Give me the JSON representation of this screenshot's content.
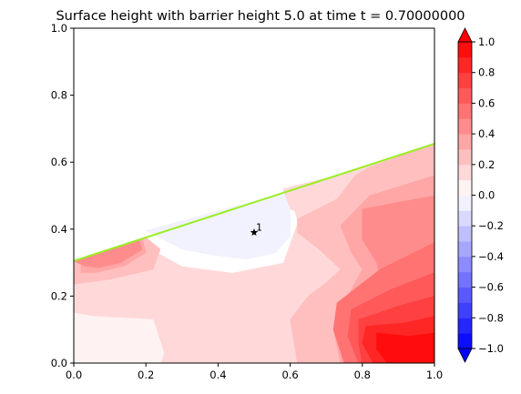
{
  "chart_data": {
    "type": "heatmap",
    "title": "Surface height with barrier height 5.0 at time t =     0.70000000",
    "xlabel": "",
    "ylabel": "",
    "xlim": [
      0.0,
      1.0
    ],
    "ylim": [
      0.0,
      1.0
    ],
    "x_ticks": [
      0.0,
      0.2,
      0.4,
      0.6,
      0.8,
      1.0
    ],
    "x_tick_labels": [
      "0.0",
      "0.2",
      "0.4",
      "0.6",
      "0.8",
      "1.0"
    ],
    "y_ticks": [
      0.0,
      0.2,
      0.4,
      0.6,
      0.8,
      1.0
    ],
    "y_tick_labels": [
      "0.0",
      "0.2",
      "0.4",
      "0.6",
      "0.8",
      "1.0"
    ],
    "grid": false,
    "colormap": "bwr",
    "colorbar": {
      "min": -1.0,
      "max": 1.0,
      "levels": [
        -1.0,
        -0.9,
        -0.8,
        -0.7,
        -0.6,
        -0.5,
        -0.4,
        -0.3,
        -0.2,
        -0.1,
        0.0,
        0.1,
        0.2,
        0.3,
        0.4,
        0.5,
        0.6,
        0.7,
        0.8,
        0.9,
        1.0
      ],
      "extend": "both",
      "ticks": [
        -1.0,
        -0.8,
        -0.6,
        -0.4,
        -0.2,
        0.0,
        0.2,
        0.4,
        0.6,
        0.8,
        1.0
      ],
      "tick_labels": [
        "−1.0",
        "−0.8",
        "−0.6",
        "−0.4",
        "−0.2",
        "0.0",
        "0.2",
        "0.4",
        "0.6",
        "0.8",
        "1.0"
      ]
    },
    "barrier_line": {
      "x": [
        0.0,
        1.0
      ],
      "y": [
        0.305,
        0.655
      ],
      "color": "#99ee22"
    },
    "marker": {
      "x": 0.5,
      "y": 0.39,
      "symbol": "star",
      "label": "1"
    },
    "regions": [
      {
        "level": 0.15,
        "points": [
          [
            0,
            0
          ],
          [
            1,
            0
          ],
          [
            1,
            0.655
          ],
          [
            0,
            0.305
          ]
        ]
      },
      {
        "level": 0.05,
        "points": [
          [
            0,
            0
          ],
          [
            0.24,
            0
          ],
          [
            0.25,
            0.03
          ],
          [
            0.22,
            0.13
          ],
          [
            0.05,
            0.14
          ],
          [
            0,
            0.15
          ]
        ]
      },
      {
        "level": 0.05,
        "points": [
          [
            0.6,
            0.53
          ],
          [
            0.72,
            0.55
          ],
          [
            0.7,
            0.47
          ],
          [
            0.64,
            0.44
          ],
          [
            0.6,
            0.46
          ]
        ]
      },
      {
        "level": 0.0,
        "points": [
          [
            0.15,
            0.38
          ],
          [
            0.56,
            0.52
          ],
          [
            0.6,
            0.5
          ],
          [
            0.62,
            0.42
          ],
          [
            0.58,
            0.3
          ],
          [
            0.44,
            0.27
          ],
          [
            0.3,
            0.29
          ]
        ]
      },
      {
        "level": -0.05,
        "points": [
          [
            0.2,
            0.396
          ],
          [
            0.59,
            0.51
          ],
          [
            0.6,
            0.44
          ],
          [
            0.6,
            0.38
          ],
          [
            0.56,
            0.33
          ],
          [
            0.48,
            0.31
          ],
          [
            0.4,
            0.32
          ],
          [
            0.3,
            0.34
          ]
        ]
      },
      {
        "level": 0.15,
        "points": [
          [
            0.58,
            0.52
          ],
          [
            0.73,
            0.56
          ],
          [
            0.74,
            0.5
          ],
          [
            0.7,
            0.45
          ],
          [
            0.64,
            0.44
          ],
          [
            0.6,
            0.46
          ]
        ]
      },
      {
        "level": 0.25,
        "points": [
          [
            0.62,
            0.43
          ],
          [
            0.73,
            0.49
          ],
          [
            0.78,
            0.56
          ],
          [
            0.82,
            0.585
          ],
          [
            1,
            0.655
          ],
          [
            1,
            0
          ],
          [
            0.62,
            0
          ],
          [
            0.6,
            0.13
          ],
          [
            0.65,
            0.2
          ],
          [
            0.7,
            0.24
          ],
          [
            0.74,
            0.28
          ],
          [
            0.68,
            0.34
          ],
          [
            0.62,
            0.39
          ]
        ]
      },
      {
        "level": 0.25,
        "points": [
          [
            0.0,
            0.305
          ],
          [
            0.2,
            0.375
          ],
          [
            0.24,
            0.34
          ],
          [
            0.22,
            0.28
          ],
          [
            0.1,
            0.25
          ],
          [
            0.0,
            0.235
          ]
        ]
      },
      {
        "level": 0.35,
        "points": [
          [
            0.74,
            0.41
          ],
          [
            0.82,
            0.5
          ],
          [
            1,
            0.56
          ],
          [
            1,
            0
          ],
          [
            0.74,
            0
          ],
          [
            0.72,
            0.1
          ],
          [
            0.76,
            0.2
          ],
          [
            0.8,
            0.28
          ],
          [
            0.77,
            0.33
          ]
        ]
      },
      {
        "level": 0.35,
        "points": [
          [
            0.02,
            0.312
          ],
          [
            0.19,
            0.372
          ],
          [
            0.2,
            0.33
          ],
          [
            0.14,
            0.29
          ],
          [
            0.06,
            0.27
          ],
          [
            0.02,
            0.27
          ]
        ]
      },
      {
        "level": 0.45,
        "points": [
          [
            0.0,
            0.305
          ],
          [
            0.05,
            0.322
          ],
          [
            0.18,
            0.368
          ],
          [
            0.19,
            0.34
          ],
          [
            0.13,
            0.3
          ],
          [
            0.07,
            0.285
          ],
          [
            0.03,
            0.29
          ]
        ]
      },
      {
        "level": 0.45,
        "points": [
          [
            0.8,
            0.46
          ],
          [
            0.9,
            0.48
          ],
          [
            1,
            0.5
          ],
          [
            1,
            0.06
          ],
          [
            0.93,
            0.1
          ],
          [
            0.86,
            0.2
          ],
          [
            0.84,
            0.3
          ],
          [
            0.8,
            0.37
          ]
        ]
      },
      {
        "level": 0.55,
        "points": [
          [
            0.73,
            0.18
          ],
          [
            0.85,
            0.28
          ],
          [
            1,
            0.36
          ],
          [
            1,
            0
          ],
          [
            0.75,
            0
          ],
          [
            0.72,
            0.1
          ]
        ]
      },
      {
        "level": 0.65,
        "points": [
          [
            0.77,
            0.16
          ],
          [
            0.88,
            0.22
          ],
          [
            1,
            0.27
          ],
          [
            1,
            0
          ],
          [
            0.79,
            0
          ],
          [
            0.76,
            0.08
          ]
        ]
      },
      {
        "level": 0.75,
        "points": [
          [
            0.79,
            0.13
          ],
          [
            0.9,
            0.17
          ],
          [
            1,
            0.2
          ],
          [
            1,
            0
          ],
          [
            0.8,
            0
          ],
          [
            0.79,
            0.06
          ]
        ]
      },
      {
        "level": 0.85,
        "points": [
          [
            0.81,
            0.11
          ],
          [
            0.92,
            0.12
          ],
          [
            1,
            0.14
          ],
          [
            1,
            0
          ],
          [
            0.83,
            0
          ],
          [
            0.8,
            0.06
          ]
        ]
      },
      {
        "level": 0.95,
        "points": [
          [
            0.84,
            0.09
          ],
          [
            0.93,
            0.08
          ],
          [
            1,
            0.09
          ],
          [
            1,
            0
          ],
          [
            0.87,
            0
          ],
          [
            0.84,
            0.04
          ]
        ]
      }
    ]
  }
}
